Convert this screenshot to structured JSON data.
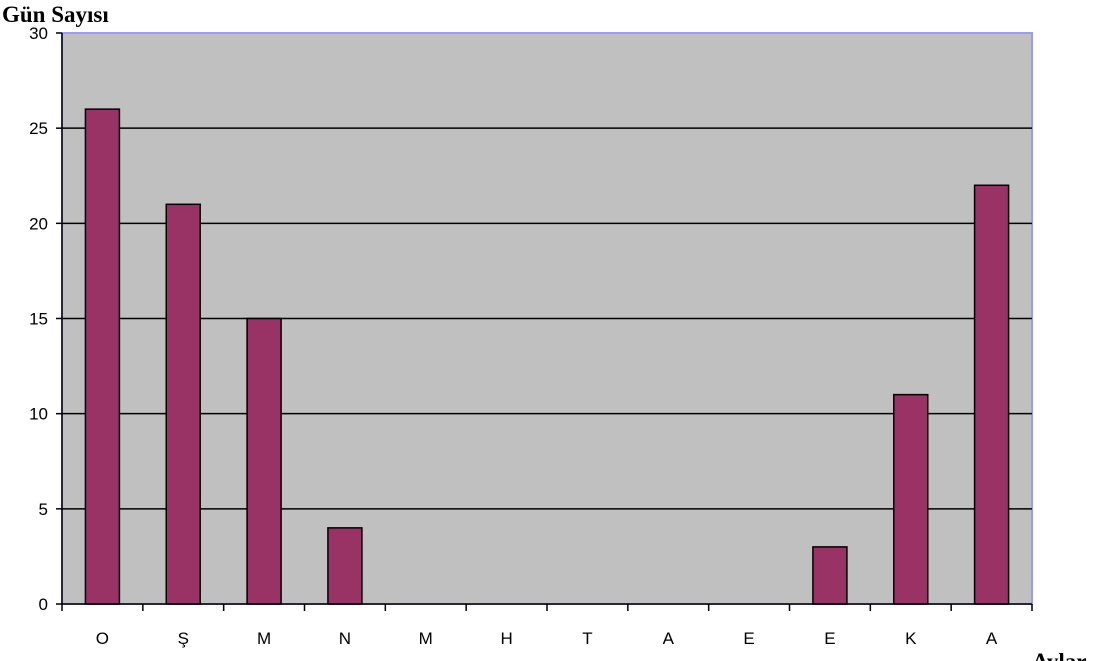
{
  "chart_data": {
    "type": "bar",
    "title": "",
    "ylabel": "Gün Sayısı",
    "xlabel": "Aylar",
    "categories": [
      "O",
      "Ş",
      "M",
      "N",
      "M",
      "H",
      "T",
      "A",
      "E",
      "E",
      "K",
      "A"
    ],
    "series": [
      {
        "values": [
          26,
          21,
          15,
          4,
          0,
          0,
          0,
          0,
          0,
          3,
          11,
          22
        ]
      }
    ],
    "ylim": [
      0,
      30
    ],
    "yticks": [
      0,
      5,
      10,
      15,
      20,
      25,
      30
    ],
    "grid": true,
    "legend": "none",
    "colors": {
      "bar_fill": "#993366",
      "bar_stroke": "#000000",
      "plot_background": "#c0c0c0",
      "plot_border": "#9999ff",
      "gridline": "#000000"
    }
  }
}
